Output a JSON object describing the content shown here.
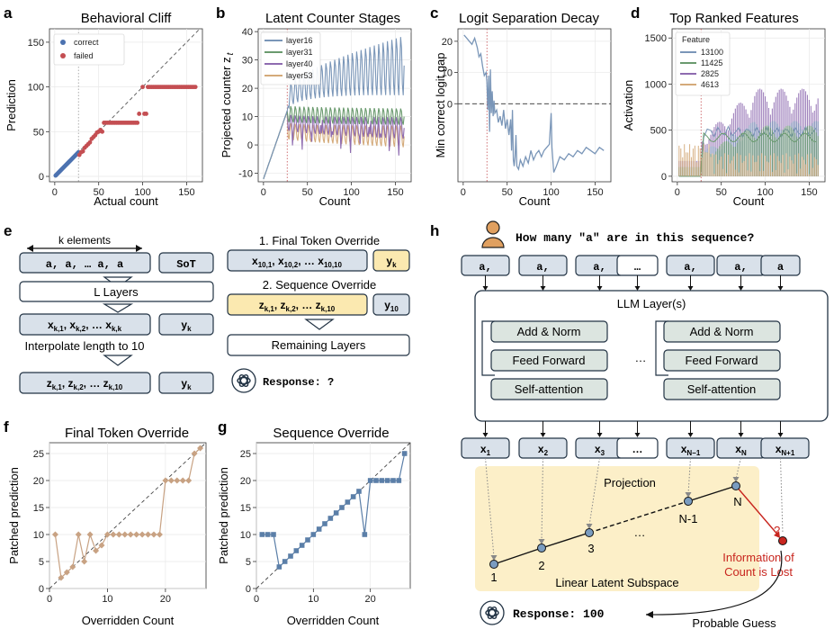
{
  "panels": {
    "a": {
      "letter": "a",
      "title": "Behavioral Cliff",
      "xlabel": "Actual count",
      "ylabel": "Prediction",
      "legend": [
        "correct",
        "failed"
      ],
      "xticks": [
        "0",
        "50",
        "100",
        "150"
      ],
      "yticks": [
        "0",
        "50",
        "100",
        "150"
      ]
    },
    "b": {
      "letter": "b",
      "title": "Latent Counter Stages",
      "xlabel": "Count",
      "ylabel": "Projected counter z",
      "ylabel_sub": "t",
      "legend": [
        "layer16",
        "layer31",
        "layer40",
        "layer53"
      ],
      "xticks": [
        "0",
        "50",
        "100",
        "150"
      ],
      "yticks": [
        "-10",
        "0",
        "10",
        "20",
        "30",
        "40"
      ]
    },
    "c": {
      "letter": "c",
      "title": "Logit Separation Decay",
      "xlabel": "Count",
      "ylabel": "Min correct logit gap",
      "xticks": [
        "0",
        "50",
        "100",
        "150"
      ],
      "yticks": [
        "0",
        "10",
        "20"
      ]
    },
    "d": {
      "letter": "d",
      "title": "Top Ranked Features",
      "xlabel": "Count",
      "ylabel": "Activation",
      "legend_title": "Feature",
      "legend": [
        "13100",
        "11425",
        "2825",
        "4613"
      ],
      "xticks": [
        "0",
        "50",
        "100",
        "150"
      ],
      "yticks": [
        "0",
        "500",
        "1000",
        "1500"
      ]
    },
    "e": {
      "letter": "e",
      "k_elements": "k elements",
      "seq_tokens": "a, a, … a, a",
      "sot": "SoT",
      "l_layers": "L Layers",
      "x_seq_main": "x",
      "x_seq_subs": [
        "k,1",
        "k,2",
        "k,k"
      ],
      "y_k_main": "y",
      "y_k_sub": "k",
      "interpolate": "Interpolate length to 10",
      "z_seq_main": "z",
      "z_seq_subs": [
        "k,1",
        "k,2",
        "k,10"
      ],
      "override1_title": "1. Final Token Override",
      "x10_subs": [
        "10,1",
        "10,2",
        "10,10"
      ],
      "override2_title": "2. Sequence Override",
      "y10_sub": "10",
      "remaining": "Remaining Layers",
      "response": "Response: ?"
    },
    "f": {
      "letter": "f",
      "title": "Final Token Override",
      "xlabel": "Overridden Count",
      "ylabel": "Patched prediction",
      "xticks": [
        "0",
        "10",
        "20"
      ],
      "yticks": [
        "0",
        "5",
        "10",
        "15",
        "20",
        "25"
      ]
    },
    "g": {
      "letter": "g",
      "title": "Sequence Override",
      "xlabel": "Overridden Count",
      "ylabel": "Patched prediction",
      "xticks": [
        "0",
        "10",
        "20"
      ],
      "yticks": [
        "0",
        "5",
        "10",
        "15",
        "20",
        "25"
      ]
    },
    "h": {
      "letter": "h",
      "question": "How many \"a\" are in this sequence?",
      "tokens": [
        "a,",
        "a,",
        "a,",
        "…",
        "a,",
        "a,",
        "a"
      ],
      "llm_layers": "LLM Layer(s)",
      "add_norm": "Add & Norm",
      "feed_forward": "Feed Forward",
      "self_attention": "Self-attention",
      "ellipsis": "…",
      "outputs_main": "x",
      "outputs_subs": [
        "1",
        "2",
        "3",
        "",
        "N−1",
        "N",
        "N+1"
      ],
      "projection": "Projection",
      "subspace": "Linear Latent Subspace",
      "point_labels": [
        "1",
        "2",
        "3",
        "…",
        "N-1",
        "N"
      ],
      "lost_mark": "?",
      "info_lost": "Information of Count is Lost",
      "info_lost_lines": [
        "Information of",
        "Count is Lost"
      ],
      "response": "Response: 100",
      "probable": "Probable Guess"
    }
  },
  "chart_data": [
    {
      "type": "scatter",
      "panel": "a",
      "title": "Behavioral Cliff",
      "xlabel": "Actual count",
      "ylabel": "Prediction",
      "xlim": [
        -6,
        168
      ],
      "ylim": [
        -6,
        165
      ],
      "legend_position": "top-left",
      "series": [
        {
          "name": "correct",
          "color": "#4c72b0",
          "x_range": [
            1,
            27
          ],
          "note_identity": true
        },
        {
          "name": "failed",
          "color": "#c44e52",
          "points": [
            [
              28,
              24
            ],
            [
              30,
              27
            ],
            [
              32,
              28
            ],
            [
              34,
              32
            ],
            [
              36,
              34
            ],
            [
              38,
              36
            ],
            [
              40,
              38
            ],
            [
              42,
              42
            ],
            [
              44,
              44
            ],
            [
              46,
              46
            ],
            [
              48,
              49
            ],
            [
              50,
              50
            ],
            [
              52,
              52
            ],
            [
              54,
              50
            ],
            [
              56,
              60
            ],
            [
              58,
              60
            ],
            [
              60,
              60
            ],
            [
              62,
              60
            ],
            [
              64,
              60
            ],
            [
              66,
              60
            ],
            [
              68,
              60
            ],
            [
              70,
              60
            ],
            [
              72,
              60
            ],
            [
              74,
              60
            ],
            [
              76,
              60
            ],
            [
              78,
              60
            ],
            [
              80,
              60
            ],
            [
              82,
              60
            ],
            [
              84,
              60
            ],
            [
              86,
              60
            ],
            [
              88,
              60
            ],
            [
              90,
              60
            ],
            [
              92,
              60
            ],
            [
              94,
              60
            ],
            [
              96,
              70
            ],
            [
              100,
              100
            ],
            [
              102,
              70
            ],
            [
              104,
              70
            ],
            [
              106,
              100
            ],
            [
              108,
              100
            ],
            [
              110,
              100
            ],
            [
              112,
              100
            ],
            [
              114,
              100
            ],
            [
              116,
              100
            ],
            [
              118,
              100
            ],
            [
              120,
              100
            ],
            [
              122,
              100
            ],
            [
              124,
              100
            ],
            [
              126,
              100
            ],
            [
              128,
              100
            ],
            [
              130,
              100
            ],
            [
              132,
              100
            ],
            [
              134,
              100
            ],
            [
              136,
              100
            ],
            [
              138,
              100
            ],
            [
              140,
              100
            ],
            [
              142,
              100
            ],
            [
              144,
              100
            ],
            [
              146,
              100
            ],
            [
              148,
              100
            ],
            [
              150,
              100
            ],
            [
              152,
              100
            ],
            [
              154,
              100
            ],
            [
              156,
              100
            ],
            [
              158,
              100
            ],
            [
              160,
              100
            ]
          ]
        }
      ]
    },
    {
      "type": "line",
      "panel": "b",
      "title": "Latent Counter Stages",
      "xlabel": "Count",
      "ylim": [
        -13,
        41
      ],
      "xlim": [
        -6,
        168
      ],
      "legend_position": "top-left",
      "series": [
        {
          "name": "layer16",
          "color": "#7a96b8",
          "rise": [
            [
              0,
              -12
            ],
            [
              27,
              12
            ]
          ],
          "stage_mean": [
            16,
            28
          ],
          "amp": [
            4,
            11
          ]
        },
        {
          "name": "layer31",
          "color": "#6a9a6e",
          "rise": [
            [
              0,
              -12
            ],
            [
              27,
              12
            ]
          ],
          "stage_mean": [
            11,
            10
          ],
          "amp": [
            3,
            3
          ]
        },
        {
          "name": "layer40",
          "color": "#8e6bb0",
          "rise": [
            [
              0,
              -12
            ],
            [
              27,
              12
            ]
          ],
          "stage_mean": [
            8,
            6
          ],
          "amp": [
            3,
            4
          ]
        },
        {
          "name": "layer53",
          "color": "#d4aa7a",
          "rise": [
            [
              0,
              -12
            ],
            [
              27,
              12
            ]
          ],
          "stage_mean": [
            5,
            3
          ],
          "amp": [
            3,
            4
          ]
        }
      ]
    },
    {
      "type": "line",
      "panel": "c",
      "title": "Logit Separation Decay",
      "xlabel": "Count",
      "ylabel": "Min correct logit gap",
      "xlim": [
        -6,
        168
      ],
      "ylim": [
        -25,
        24
      ],
      "series": [
        {
          "name": "",
          "color": "#7a96b8",
          "points": [
            [
              1,
              22
            ],
            [
              4,
              21
            ],
            [
              7,
              20
            ],
            [
              10,
              19
            ],
            [
              13,
              21
            ],
            [
              16,
              18
            ],
            [
              18,
              15
            ],
            [
              20,
              16
            ],
            [
              22,
              12
            ],
            [
              24,
              9
            ],
            [
              26,
              10
            ],
            [
              27,
              7
            ],
            [
              28,
              -2
            ],
            [
              29,
              9
            ],
            [
              30,
              -9
            ],
            [
              31,
              11
            ],
            [
              32,
              -3
            ],
            [
              33,
              4
            ],
            [
              34,
              -4
            ],
            [
              35,
              1
            ],
            [
              36,
              -3
            ],
            [
              38,
              -2
            ],
            [
              40,
              -6
            ],
            [
              42,
              -4
            ],
            [
              44,
              -7
            ],
            [
              46,
              -2
            ],
            [
              48,
              -8
            ],
            [
              50,
              -5
            ],
            [
              52,
              -10
            ],
            [
              54,
              -5
            ],
            [
              55,
              -15
            ],
            [
              56,
              -2
            ],
            [
              57,
              -18
            ],
            [
              58,
              -20
            ],
            [
              59,
              -17
            ],
            [
              60,
              -10
            ],
            [
              61,
              -20
            ],
            [
              63,
              -21
            ],
            [
              65,
              -18
            ],
            [
              68,
              -20
            ],
            [
              71,
              -17
            ],
            [
              74,
              -19
            ],
            [
              77,
              -15
            ],
            [
              80,
              -18
            ],
            [
              83,
              -16
            ],
            [
              86,
              -15
            ],
            [
              89,
              -17
            ],
            [
              92,
              -15
            ],
            [
              95,
              -14
            ],
            [
              98,
              -13
            ],
            [
              100,
              -3
            ],
            [
              101,
              -14
            ],
            [
              103,
              -22
            ],
            [
              106,
              -20
            ],
            [
              110,
              -17
            ],
            [
              115,
              -18
            ],
            [
              120,
              -16
            ],
            [
              125,
              -17
            ],
            [
              130,
              -15
            ],
            [
              135,
              -16
            ],
            [
              140,
              -14
            ],
            [
              145,
              -15
            ],
            [
              150,
              -16
            ],
            [
              155,
              -14
            ],
            [
              160,
              -15
            ]
          ]
        }
      ]
    },
    {
      "type": "area",
      "panel": "d",
      "title": "Top Ranked Features",
      "xlabel": "Count",
      "ylabel": "Activation",
      "xlim": [
        -6,
        168
      ],
      "ylim": [
        -60,
        1600
      ],
      "legend_title": "Feature",
      "legend_position": "top-left",
      "series": [
        {
          "name": "13100",
          "color": "#7a96b8",
          "peak": 600
        },
        {
          "name": "11425",
          "color": "#6a9a6e",
          "peak": 550
        },
        {
          "name": "2825",
          "color": "#8e6bb0",
          "peak": 950
        },
        {
          "name": "4613",
          "color": "#d4aa7a",
          "peak": 500
        }
      ]
    },
    {
      "type": "line",
      "panel": "f",
      "title": "Final Token Override",
      "xlabel": "Overridden Count",
      "ylabel": "Patched prediction",
      "xlim": [
        0,
        27
      ],
      "ylim": [
        0,
        27
      ],
      "color": "#c8a283",
      "x": [
        1,
        2,
        3,
        4,
        5,
        6,
        7,
        8,
        9,
        10,
        11,
        12,
        13,
        14,
        15,
        16,
        17,
        18,
        19,
        20,
        21,
        22,
        23,
        24,
        25,
        26
      ],
      "y": [
        10,
        2,
        3,
        4,
        10,
        5,
        10,
        7,
        8,
        10,
        10,
        10,
        10,
        10,
        10,
        10,
        10,
        10,
        10,
        20,
        20,
        20,
        20,
        20,
        25,
        26
      ]
    },
    {
      "type": "line",
      "panel": "g",
      "title": "Sequence Override",
      "xlabel": "Overridden Count",
      "ylabel": "Patched prediction",
      "xlim": [
        0,
        27
      ],
      "ylim": [
        0,
        27
      ],
      "color": "#5b7fa8",
      "x": [
        1,
        2,
        3,
        4,
        5,
        6,
        7,
        8,
        9,
        10,
        11,
        12,
        13,
        14,
        15,
        16,
        17,
        18,
        19,
        20,
        21,
        22,
        23,
        24,
        25,
        26
      ],
      "y": [
        10,
        10,
        10,
        4,
        5,
        6,
        7,
        8,
        9,
        10,
        11,
        12,
        13,
        14,
        15,
        16,
        17,
        18,
        10,
        20,
        20,
        20,
        20,
        20,
        20,
        25
      ]
    }
  ]
}
